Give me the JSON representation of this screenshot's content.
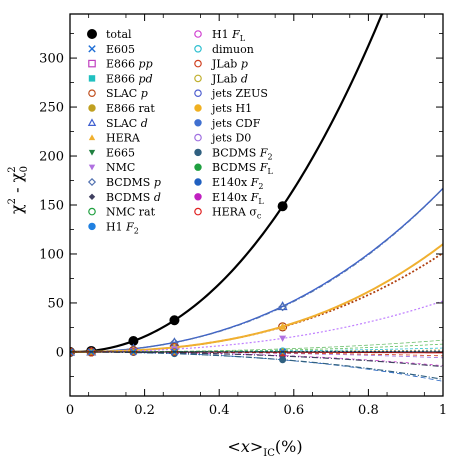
{
  "chart_data": {
    "type": "line",
    "xlabel": "<x>IC(%)",
    "xlabel_parts": {
      "pre": "<",
      "var": "x",
      "post": ">",
      "sub": "IC",
      "unit": "(%)"
    },
    "ylabel": "χ² - χ₀²",
    "xlim": [
      0,
      1
    ],
    "ylim": [
      -45,
      345
    ],
    "x_ticks": [
      0,
      0.2,
      0.4,
      0.6,
      0.8,
      1
    ],
    "x_tick_labels": [
      "0",
      "0.2",
      "0.4",
      "0.6",
      "0.8",
      "1"
    ],
    "y_ticks": [
      0,
      50,
      100,
      150,
      200,
      250,
      300
    ],
    "y_tick_labels": [
      "0",
      "50",
      "100",
      "150",
      "200",
      "250",
      "300"
    ],
    "grid": false,
    "legend_placement": "top-left",
    "marker_x": [
      0,
      0.057,
      0.17,
      0.28,
      0.57
    ],
    "legend": [
      {
        "key": "total",
        "label": "total",
        "color": "#000000",
        "marker": "circle-filled"
      },
      {
        "key": "e605",
        "label": "E605",
        "color": "#1f6fd6",
        "marker": "x"
      },
      {
        "key": "e866pp",
        "label": "E866 pp",
        "color": "#c040c0",
        "marker": "square-open"
      },
      {
        "key": "e866pd",
        "label": "E866 pd",
        "color": "#20c0c0",
        "marker": "square-filled"
      },
      {
        "key": "slacp",
        "label": "SLAC p",
        "color": "#c05020",
        "marker": "circle-open"
      },
      {
        "key": "e866rat",
        "label": "E866 rat",
        "color": "#c0a020",
        "marker": "circle-filled"
      },
      {
        "key": "slacd",
        "label": "SLAC d",
        "color": "#4060d0",
        "marker": "triangle-open"
      },
      {
        "key": "hera",
        "label": "HERA",
        "color": "#f0b030",
        "marker": "triangle-filled"
      },
      {
        "key": "e665",
        "label": "E665",
        "color": "#208040",
        "marker": "triangle-down"
      },
      {
        "key": "nmc",
        "label": "NMC",
        "color": "#b070e0",
        "marker": "triangle-down"
      },
      {
        "key": "bcdmsp",
        "label": "BCDMS p",
        "color": "#5070b0",
        "marker": "diamond-open"
      },
      {
        "key": "bcdmsd",
        "label": "BCDMS d",
        "color": "#404060",
        "marker": "diamond-filled"
      },
      {
        "key": "nmcrat",
        "label": "NMC rat",
        "color": "#20a040",
        "marker": "circle-open"
      },
      {
        "key": "h1f2",
        "label": "H1 F2",
        "color": "#2080e0",
        "marker": "circle-filled"
      },
      {
        "key": "h1fl",
        "label": "H1 FL",
        "color": "#d040d0",
        "marker": "circle-open"
      },
      {
        "key": "dimuon",
        "label": "dimuon",
        "color": "#30c0d0",
        "marker": "circle-open"
      },
      {
        "key": "jlabp",
        "label": "JLab p",
        "color": "#d04020",
        "marker": "circle-open"
      },
      {
        "key": "jlabd",
        "label": "JLab d",
        "color": "#c0b030",
        "marker": "circle-open"
      },
      {
        "key": "jetszeus",
        "label": "jets ZEUS",
        "color": "#5060d0",
        "marker": "circle-open"
      },
      {
        "key": "jetsh1",
        "label": "jets H1",
        "color": "#f0b020",
        "marker": "circle-filled"
      },
      {
        "key": "jetscdf",
        "label": "jets CDF",
        "color": "#4070d0",
        "marker": "circle-filled"
      },
      {
        "key": "jetsd0",
        "label": "jets D0",
        "color": "#a070e0",
        "marker": "circle-open"
      },
      {
        "key": "bcdmsf2",
        "label": "BCDMS F2",
        "color": "#306080",
        "marker": "circle-filled"
      },
      {
        "key": "bcdmsfl",
        "label": "BCDMS FL",
        "color": "#20a040",
        "marker": "circle-filled"
      },
      {
        "key": "e140xf2",
        "label": "E140x F2",
        "color": "#2060c0",
        "marker": "circle-filled"
      },
      {
        "key": "e140xfl",
        "label": "E140x FL",
        "color": "#c020c0",
        "marker": "circle-filled"
      },
      {
        "key": "heraσc",
        "label": "HERA σc",
        "color": "#e02020",
        "marker": "circle-open"
      }
    ],
    "series": [
      {
        "key": "total",
        "color": "#000000",
        "dash": "",
        "width": 2.2,
        "coef": [
          -6,
          400,
          120
        ],
        "marker": "circle-filled",
        "marker_color": "#000000",
        "ms": 4.5
      },
      {
        "key": "slacd",
        "color": "#3a5fd0",
        "dash": "",
        "width": 1.4,
        "coef": [
          -3,
          120,
          50
        ],
        "marker": "triangle-open",
        "marker_color": "#3a5fd0",
        "ms": 4
      },
      {
        "key": "bcdmsp",
        "color": "#5070b0",
        "dash": "5,2,1,2",
        "width": 1.3,
        "coef": [
          -1,
          110,
          58
        ],
        "marker": "diamond-open",
        "marker_color": "#5070b0",
        "ms": 3.5
      },
      {
        "key": "slacp",
        "color": "#b04010",
        "dash": "2,2",
        "width": 1.8,
        "coef": [
          -4,
          60,
          45
        ],
        "marker": "circle-open",
        "marker_color": "#b04010",
        "ms": 4
      },
      {
        "key": "hera",
        "color": "#f0b030",
        "dash": "",
        "width": 2,
        "coef": [
          0,
          40,
          70
        ],
        "marker": "triangle-filled",
        "marker_color": "#f0b030",
        "ms": 4
      },
      {
        "key": "nmc",
        "color": "#c080ff",
        "dash": "2,2",
        "width": 1.2,
        "coef": [
          0,
          30,
          22
        ],
        "marker": "triangle-down",
        "marker_color": "#b070e0",
        "ms": 3.5
      },
      {
        "key": "e665",
        "color": "#70c070",
        "dash": "4,2",
        "width": 0.8,
        "coef": [
          0,
          6,
          6
        ],
        "marker": "",
        "marker_color": "#208040",
        "ms": 0
      },
      {
        "key": "nmcrat",
        "color": "#60c060",
        "dash": "3,2",
        "width": 0.8,
        "coef": [
          0,
          3,
          5
        ],
        "marker": "",
        "marker_color": "#20a040",
        "ms": 0
      },
      {
        "key": "dimuon",
        "color": "#30c0d0",
        "dash": "3,2",
        "width": 0.8,
        "coef": [
          0,
          2,
          2
        ],
        "marker": "circle-open",
        "marker_color": "#30c0d0",
        "ms": 3
      },
      {
        "key": "jetsd0",
        "color": "#a070e0",
        "dash": "4,3",
        "width": 0.8,
        "coef": [
          0,
          -3,
          -3
        ],
        "marker": "circle-open",
        "marker_color": "#a070e0",
        "ms": 3
      },
      {
        "key": "h1fl",
        "color": "#d040d0",
        "dash": "3,3",
        "width": 0.8,
        "coef": [
          0,
          -8,
          -6
        ],
        "marker": "circle-open",
        "marker_color": "#d040d0",
        "ms": 3
      },
      {
        "key": "bcdmsd",
        "color": "#404060",
        "dash": "6,2,1,2",
        "width": 1.2,
        "coef": [
          0,
          -10,
          -5
        ],
        "marker": "diamond-filled",
        "marker_color": "#404060",
        "ms": 3
      },
      {
        "key": "e140xf2",
        "color": "#2060c0",
        "dash": "5,3",
        "width": 0.8,
        "coef": [
          0,
          -18,
          -12
        ],
        "marker": "circle-filled",
        "marker_color": "#2060c0",
        "ms": 2.5
      },
      {
        "key": "jlabp",
        "color": "#d04020",
        "dash": "4,3",
        "width": 0.8,
        "coef": [
          0,
          -2,
          -2
        ],
        "marker": "circle-open",
        "marker_color": "#d04020",
        "ms": 3
      },
      {
        "key": "bcdmsf2",
        "color": "#306080",
        "dash": "6,2,1,2",
        "width": 1.2,
        "coef": [
          0,
          -20,
          -8
        ],
        "marker": "circle-filled",
        "marker_color": "#306080",
        "ms": 3
      },
      {
        "key": "heraσc",
        "color": "#e02020",
        "dash": "",
        "width": 1,
        "coef": [
          0,
          -1,
          0
        ],
        "marker": "circle-open",
        "marker_color": "#e02020",
        "ms": 3
      },
      {
        "key": "e866rat",
        "color": "#c0a020",
        "dash": "2,2",
        "width": 0.8,
        "coef": [
          0,
          1,
          1
        ],
        "marker": "circle-filled",
        "marker_color": "#c0a020",
        "ms": 2.5
      },
      {
        "key": "e605",
        "color": "#1f6fd6",
        "dash": "2,2",
        "width": 0.8,
        "coef": [
          0,
          1,
          0
        ],
        "marker": "x",
        "marker_color": "#1f6fd6",
        "ms": 3
      }
    ]
  }
}
